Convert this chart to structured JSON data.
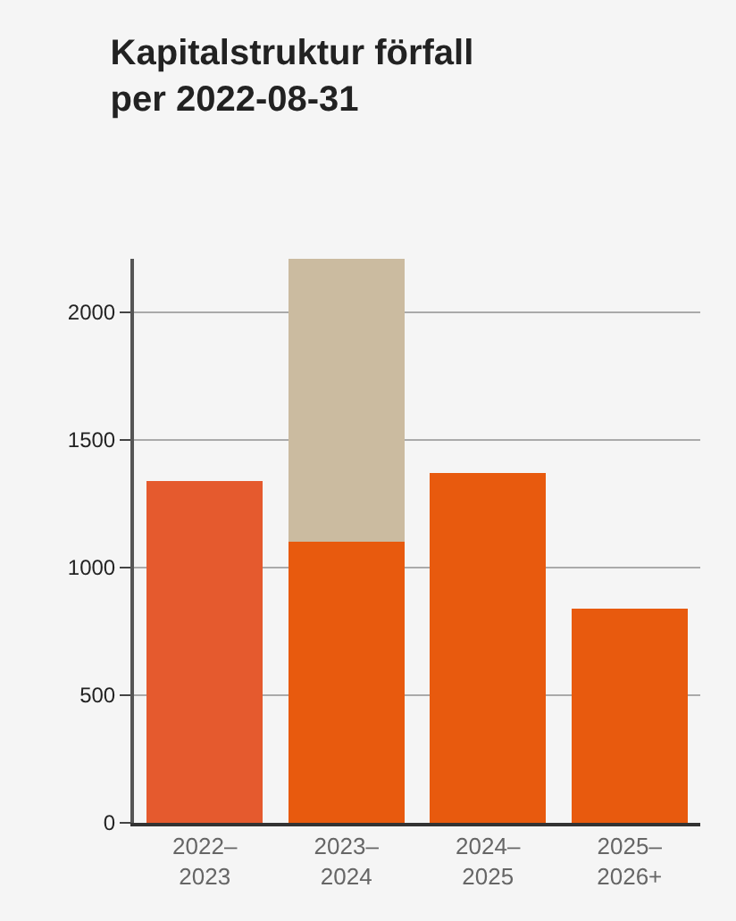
{
  "chart_data": {
    "type": "bar",
    "title": "Kapitalstruktur förfall\nper 2022-08-31",
    "categories": [
      "2022–\n2023",
      "2023–\n2024",
      "2024–\n2025",
      "2025–\n2026+"
    ],
    "stacked": true,
    "series": [
      {
        "colors": [
          "#e55a2e",
          "#e85a0e",
          "#e85a0e",
          "#e85a0e"
        ],
        "values": [
          1340,
          1100,
          1370,
          840
        ]
      },
      {
        "color": "#cbbba0",
        "values": [
          null,
          1110,
          null,
          null
        ]
      }
    ],
    "ylim": [
      0,
      2210
    ],
    "yticks": [
      0,
      500,
      1000,
      1500,
      2000
    ],
    "grid": "y"
  }
}
